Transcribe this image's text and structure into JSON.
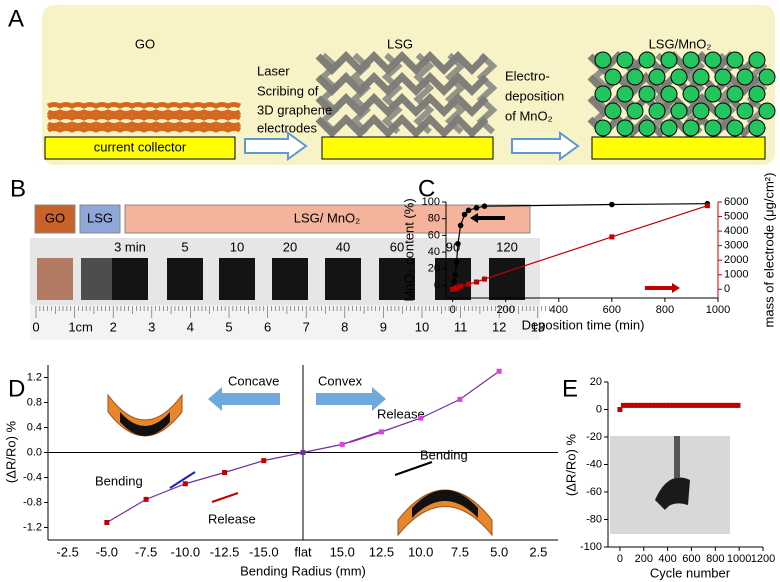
{
  "panel_labels": [
    "A",
    "B",
    "C",
    "D",
    "E"
  ],
  "schematic": {
    "stages": [
      "GO",
      "LSG",
      "LSG/MnO₂"
    ],
    "step1": [
      "Laser",
      "Scribing of",
      "3D graphene",
      "electrodes"
    ],
    "step2": [
      "Electro-",
      "deposition",
      "of MnO₂"
    ],
    "substrate": "current collector"
  },
  "photo": {
    "tags": [
      "GO",
      "LSG",
      "LSG/ MnO₂"
    ],
    "times": [
      "3 min",
      "5",
      "10",
      "20",
      "40",
      "60",
      "90",
      "120"
    ],
    "ruler": [
      "0",
      "1cm",
      "2",
      "3",
      "4",
      "5",
      "6",
      "7",
      "8",
      "9",
      "10",
      "11",
      "12",
      "13"
    ]
  },
  "chart_data": [
    {
      "type": "line",
      "xlabel": "Deposition time (min)",
      "ylabel": "MnO₂ content (%)",
      "y2label": "mass of electrode (μg/cm²)",
      "xlim": [
        -25,
        1000
      ],
      "xticks": [
        0,
        200,
        400,
        600,
        800,
        1000
      ],
      "ylim": [
        -15,
        100
      ],
      "yticks": [
        0,
        20,
        40,
        60,
        80,
        100
      ],
      "y2lim": [
        -600,
        6000
      ],
      "y2ticks": [
        0,
        1000,
        2000,
        3000,
        4000,
        5000,
        6000
      ],
      "series": [
        {
          "color": "#000000",
          "marker": "circle",
          "x": [
            0,
            5,
            10,
            15,
            20,
            30,
            45,
            60,
            90,
            120,
            600,
            960
          ],
          "values": [
            -2,
            5,
            13,
            28,
            50,
            72,
            85,
            90,
            93,
            95,
            97,
            98
          ]
        },
        {
          "color": "#c00000",
          "marker": "square",
          "axis": "y2",
          "x": [
            0,
            5,
            10,
            15,
            30,
            60,
            90,
            120,
            600,
            960
          ],
          "values": [
            0,
            30,
            60,
            100,
            200,
            350,
            500,
            700,
            3600,
            5750
          ]
        }
      ]
    },
    {
      "type": "line",
      "xlabel": "Bending Radius (mm)",
      "ylabel": "(ΔR/Ro) %",
      "crosshair": true,
      "categories": [
        "-2.5",
        "-5.0",
        "-7.5",
        "-10.0",
        "-12.5",
        "-15.0",
        "flat",
        "15.0",
        "12.5",
        "10.0",
        "7.5",
        "5.0",
        "2.5"
      ],
      "ylim": [
        -1.4,
        1.4
      ],
      "yticks": [
        {
          "value": -1.2,
          "label": "-1.2"
        },
        {
          "value": -0.8,
          "label": "-0.8"
        },
        {
          "value": -0.4,
          "label": "-0.4"
        },
        {
          "value": 0,
          "label": "0.0"
        },
        0.4,
        0.8,
        1.2
      ],
      "series": [
        {
          "color": "#7030a0",
          "marker": "square",
          "marker_color_negative": "#c00000",
          "marker_color_positive": "#e040e0",
          "values": [
            null,
            -1.12,
            -0.75,
            -0.5,
            -0.32,
            -0.13,
            0,
            0.13,
            0.33,
            0.55,
            0.85,
            1.3,
            null
          ]
        }
      ],
      "annotations": [
        {
          "text": "Concave",
          "color": "#000000"
        },
        {
          "text": "Convex",
          "color": "#000000"
        },
        {
          "text": "Release",
          "color": "#e040e0"
        },
        {
          "text": "Bending",
          "color": "#000000"
        },
        {
          "text": "Bending",
          "color": "#1f1fc0"
        },
        {
          "text": "Release",
          "color": "#c00000"
        }
      ]
    },
    {
      "type": "scatter",
      "xlabel": "Cycle number",
      "ylabel": "(ΔR/Ro) %",
      "xlim": [
        -100,
        1200
      ],
      "xticks": [
        0,
        200,
        400,
        600,
        800,
        1000,
        1200
      ],
      "ylim": [
        -100,
        20
      ],
      "yticks": [
        -100,
        -80,
        -60,
        -40,
        -20,
        0,
        20
      ],
      "series": [
        {
          "color": "#c00000",
          "marker": "square",
          "x": [
            0,
            30,
            60,
            90,
            120,
            150,
            180,
            210,
            240,
            270,
            300,
            330,
            360,
            390,
            420,
            450,
            480,
            510,
            540,
            570,
            600,
            630,
            660,
            690,
            720,
            750,
            780,
            810,
            840,
            870,
            900,
            930,
            960,
            990
          ],
          "values": [
            0,
            3,
            3,
            3,
            3,
            3,
            3,
            3,
            3,
            3,
            3,
            3,
            3,
            3,
            3,
            3,
            3,
            3,
            3,
            3,
            3,
            3,
            3,
            3,
            3,
            3,
            3,
            3,
            3,
            3,
            3,
            3,
            3,
            3
          ]
        }
      ]
    }
  ]
}
